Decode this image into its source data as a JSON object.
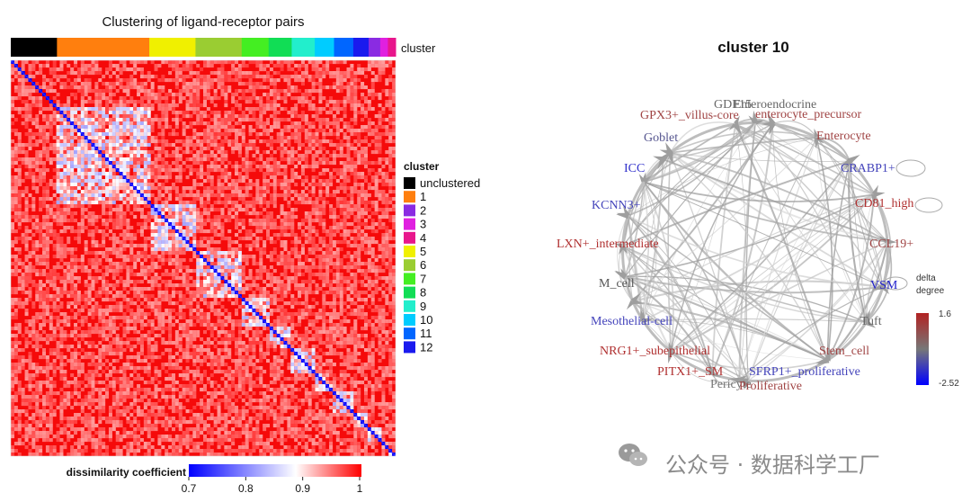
{
  "heatmap_panel": {
    "title": "Clustering of ligand-receptor pairs",
    "annotation_label": "cluster",
    "legend_title": "cluster",
    "legend_items": [
      {
        "label": "unclustered",
        "color": "#000000"
      },
      {
        "label": "1",
        "color": "#ff7f0e"
      },
      {
        "label": "2",
        "color": "#8a2be2"
      },
      {
        "label": "3",
        "color": "#e020e0"
      },
      {
        "label": "4",
        "color": "#e8168c"
      },
      {
        "label": "5",
        "color": "#f0f000"
      },
      {
        "label": "6",
        "color": "#9acd32"
      },
      {
        "label": "7",
        "color": "#44ee22"
      },
      {
        "label": "8",
        "color": "#11dd55"
      },
      {
        "label": "9",
        "color": "#22eecc"
      },
      {
        "label": "10",
        "color": "#00ccff"
      },
      {
        "label": "11",
        "color": "#0066ff"
      },
      {
        "label": "12",
        "color": "#1a1aee"
      }
    ],
    "colorbar_title": "dissimilarity coefficient",
    "colorbar_ticks": [
      "0.7",
      "0.8",
      "0.9",
      "1"
    ]
  },
  "network_panel": {
    "title": "cluster 10",
    "legend_title_line1": "delta",
    "legend_title_line2": "degree",
    "legend_max": "1.6",
    "legend_min": "-2.52",
    "nodes": [
      {
        "label": "GDF15",
        "color": "#666666"
      },
      {
        "label": "Enteroendocrine",
        "color": "#666666"
      },
      {
        "label": "GPX3+_villus-core",
        "color": "#a04444"
      },
      {
        "label": "enterocyte_precursor",
        "color": "#a04444"
      },
      {
        "label": "Goblet",
        "color": "#55558f"
      },
      {
        "label": "Enterocyte",
        "color": "#a04444"
      },
      {
        "label": "ICC",
        "color": "#3333cc"
      },
      {
        "label": "CRABP1+",
        "color": "#4444bb"
      },
      {
        "label": "KCNN3+",
        "color": "#4444bb"
      },
      {
        "label": "CD81_high",
        "color": "#b03030"
      },
      {
        "label": "LXN+_intermediate",
        "color": "#b03030"
      },
      {
        "label": "CCL19+",
        "color": "#a04444"
      },
      {
        "label": "M_cell",
        "color": "#555555"
      },
      {
        "label": "VSM",
        "color": "#2222cc"
      },
      {
        "label": "Mesothelial-cell",
        "color": "#4444bb"
      },
      {
        "label": "Tuft",
        "color": "#666666"
      },
      {
        "label": "NRG1+_subepithelial",
        "color": "#b03030"
      },
      {
        "label": "Stem_cell",
        "color": "#a04444"
      },
      {
        "label": "PITX1+_SM",
        "color": "#b03030"
      },
      {
        "label": "SFRP1+_proliferative",
        "color": "#4444bb"
      },
      {
        "label": "Pericyte",
        "color": "#777777"
      },
      {
        "label": "Proliferative",
        "color": "#a04444"
      }
    ]
  },
  "watermark": "公众号 · 数据科学工厂",
  "chart_data": [
    {
      "type": "heatmap",
      "title": "Clustering of ligand-receptor pairs",
      "color_scale_label": "dissimilarity coefficient",
      "color_range": [
        0.7,
        1
      ],
      "color_low": "#0000ff",
      "color_mid": "#ffffff",
      "color_high": "#ff0000",
      "cluster_order": [
        "unclustered",
        "1",
        "5",
        "6",
        "7",
        "8",
        "9",
        "10",
        "11",
        "12",
        "2",
        "3",
        "4"
      ],
      "cluster_share": [
        0.12,
        0.24,
        0.12,
        0.12,
        0.07,
        0.06,
        0.06,
        0.05,
        0.05,
        0.04,
        0.03,
        0.02,
        0.02
      ]
    },
    {
      "type": "network",
      "title": "cluster 10",
      "color_scale_label": "delta degree",
      "color_range": [
        -2.52,
        1.6
      ],
      "color_low": "#0000ff",
      "color_high": "#b22222"
    }
  ]
}
